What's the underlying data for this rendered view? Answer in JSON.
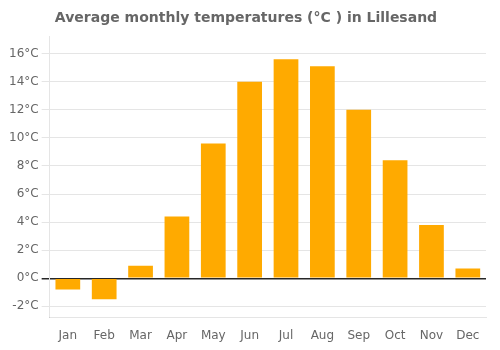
{
  "chart_data": {
    "type": "bar",
    "title": "Average monthly temperatures (°C ) in Lillesand",
    "categories": [
      "Jan",
      "Feb",
      "Mar",
      "Apr",
      "May",
      "Jun",
      "Jul",
      "Aug",
      "Sep",
      "Oct",
      "Nov",
      "Dec"
    ],
    "values": [
      -0.8,
      -1.5,
      0.9,
      4.4,
      9.6,
      14.0,
      15.6,
      15.1,
      12.0,
      8.4,
      3.8,
      0.7
    ],
    "color": "#FFAA00",
    "ylim": [
      -2.8,
      17.2
    ],
    "yticks": [
      {
        "value": -2,
        "label": "-2°C"
      },
      {
        "value": 0,
        "label": "0°C"
      },
      {
        "value": 2,
        "label": "2°C"
      },
      {
        "value": 4,
        "label": "4°C"
      },
      {
        "value": 6,
        "label": "6°C"
      },
      {
        "value": 8,
        "label": "8°C"
      },
      {
        "value": 10,
        "label": "10°C"
      },
      {
        "value": 12,
        "label": "12°C"
      },
      {
        "value": 14,
        "label": "14°C"
      },
      {
        "value": 16,
        "label": "16°C"
      }
    ],
    "grid": true
  }
}
